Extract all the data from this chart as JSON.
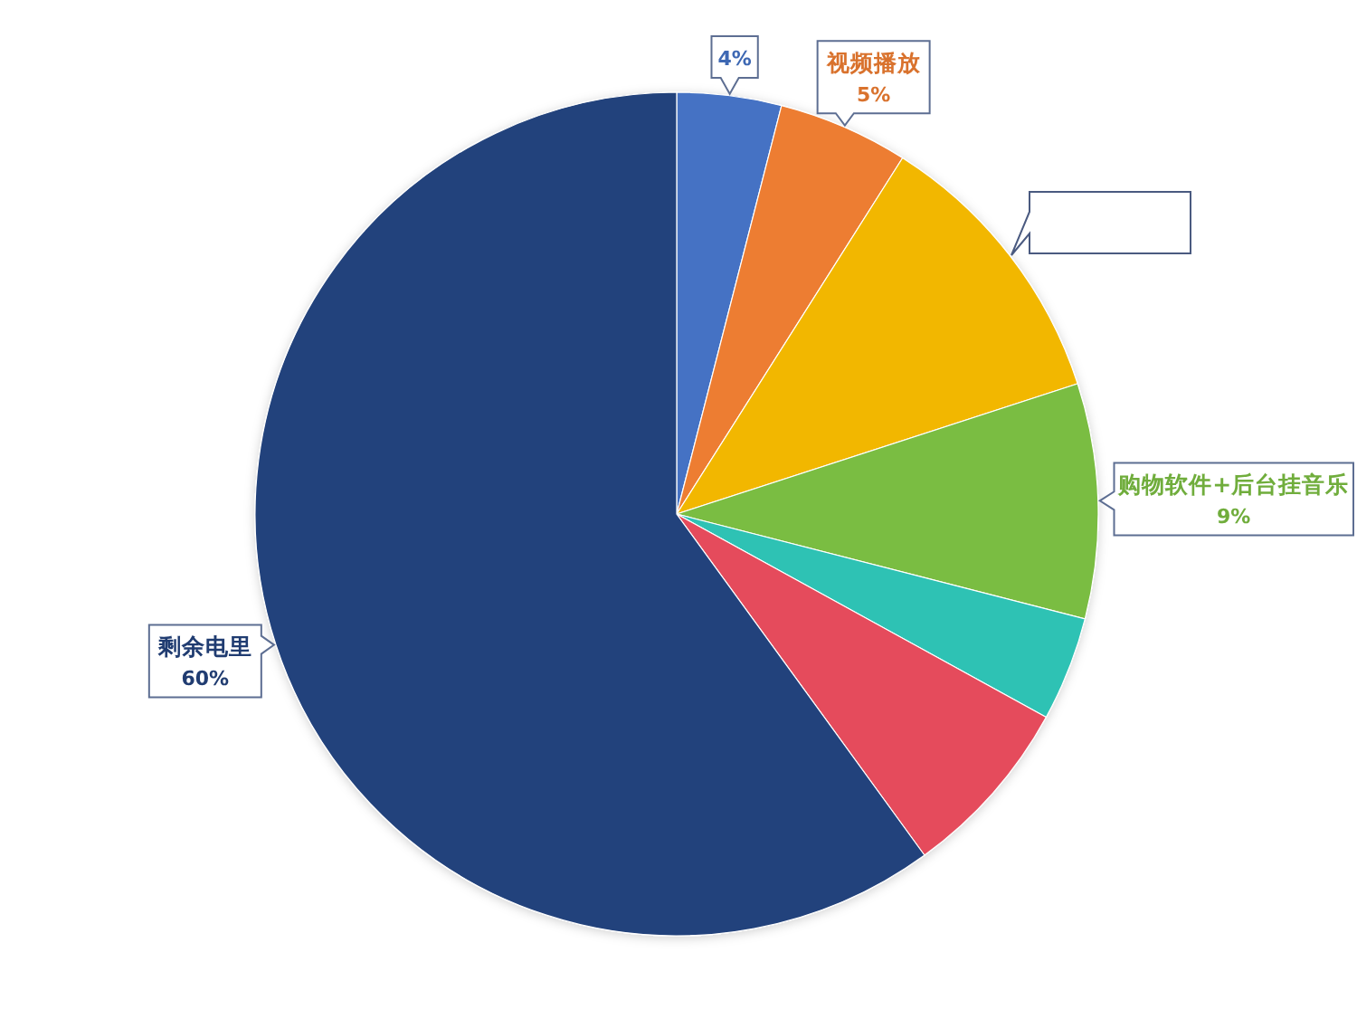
{
  "chart_data": {
    "type": "pie",
    "categories": [
      null,
      "视频播放",
      null,
      "购物软件+后台挂音乐",
      null,
      null,
      "剩余电里"
    ],
    "values": [
      4,
      5,
      11,
      9,
      4,
      7,
      60
    ],
    "colors": [
      "#4472c4",
      "#ed7d31",
      "#f2b700",
      "#7abd42",
      "#2ec2b4",
      "#e54b5c",
      "#23427b"
    ],
    "value_labels": [
      "4%",
      "5%",
      null,
      "9%",
      null,
      null,
      "60%"
    ]
  }
}
